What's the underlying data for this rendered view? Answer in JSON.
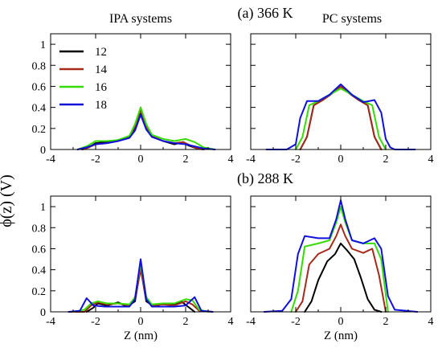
{
  "figure": {
    "ylabel": "ϕ(z)   (V)",
    "row_titles": [
      "(a) 366 K",
      "(b) 288 K"
    ],
    "col_titles": [
      "IPA systems",
      "PC systems"
    ]
  },
  "legend": {
    "entries": [
      {
        "label": "12",
        "color": "#000000"
      },
      {
        "label": "14",
        "color": "#a52a1a"
      },
      {
        "label": "16",
        "color": "#33dd00"
      },
      {
        "label": "18",
        "color": "#1010dd"
      }
    ]
  },
  "chart_data": [
    {
      "type": "line",
      "panel": "a-IPA",
      "xlabel": "",
      "ylabel": "",
      "xlim": [
        -4,
        4
      ],
      "ylim": [
        0,
        1.1
      ],
      "xticks": [
        "-4",
        "-2",
        "0",
        "2",
        "4"
      ],
      "yticks": [
        "0",
        "0.2",
        "0.4",
        "0.6",
        "0.8",
        "1"
      ],
      "series": [
        {
          "name": "12",
          "color": "#000000",
          "x": [
            -2.6,
            -2.3,
            -2.0,
            -1.5,
            -1.0,
            -0.5,
            -0.25,
            0,
            0.25,
            0.5,
            1.0,
            1.5,
            1.9,
            2.1,
            2.5,
            2.8
          ],
          "y": [
            0,
            0.02,
            0.06,
            0.07,
            0.09,
            0.12,
            0.2,
            0.34,
            0.2,
            0.12,
            0.08,
            0.05,
            0.07,
            0.04,
            0.01,
            0
          ]
        },
        {
          "name": "14",
          "color": "#a52a1a",
          "x": [
            -2.6,
            -2.3,
            -2.0,
            -1.5,
            -1.0,
            -0.5,
            -0.25,
            0,
            0.25,
            0.5,
            1.0,
            1.5,
            1.9,
            2.1,
            2.5,
            2.8
          ],
          "y": [
            0,
            0.02,
            0.05,
            0.06,
            0.08,
            0.12,
            0.22,
            0.38,
            0.22,
            0.13,
            0.08,
            0.06,
            0.07,
            0.05,
            0.01,
            0
          ]
        },
        {
          "name": "16",
          "color": "#33dd00",
          "x": [
            -2.8,
            -2.4,
            -2.0,
            -1.5,
            -1.0,
            -0.5,
            -0.25,
            0,
            0.25,
            0.5,
            1.0,
            1.5,
            2.0,
            2.4,
            2.8,
            3.3
          ],
          "y": [
            0,
            0.03,
            0.08,
            0.08,
            0.09,
            0.13,
            0.24,
            0.4,
            0.24,
            0.14,
            0.1,
            0.08,
            0.1,
            0.07,
            0.02,
            0
          ]
        },
        {
          "name": "18",
          "color": "#1010dd",
          "x": [
            -2.8,
            -2.4,
            -2.0,
            -1.5,
            -1.0,
            -0.5,
            -0.25,
            0,
            0.25,
            0.5,
            1.0,
            1.5,
            2.0,
            2.4,
            2.8,
            3.3
          ],
          "y": [
            0,
            0.02,
            0.05,
            0.06,
            0.08,
            0.11,
            0.18,
            0.33,
            0.19,
            0.12,
            0.08,
            0.06,
            0.05,
            0.03,
            0.01,
            0
          ]
        }
      ]
    },
    {
      "type": "line",
      "panel": "a-PC",
      "xlabel": "",
      "ylabel": "",
      "xlim": [
        -4,
        4
      ],
      "ylim": [
        0,
        1.1
      ],
      "xticks": [
        "-4",
        "-2",
        "0",
        "2",
        "4"
      ],
      "yticks": [
        "0",
        "0.2",
        "0.4",
        "0.6",
        "0.8",
        "1"
      ],
      "series": [
        {
          "name": "12",
          "color": "#000000",
          "x": [
            -1.8,
            -1.5,
            -1.2,
            -0.8,
            -0.4,
            0,
            0.4,
            0.8,
            1.2,
            1.5,
            1.8
          ],
          "y": [
            0,
            0.12,
            0.42,
            0.47,
            0.53,
            0.6,
            0.53,
            0.47,
            0.42,
            0.12,
            0
          ]
        },
        {
          "name": "14",
          "color": "#a52a1a",
          "x": [
            -1.8,
            -1.5,
            -1.2,
            -0.8,
            -0.4,
            0,
            0.4,
            0.8,
            1.2,
            1.5,
            1.8
          ],
          "y": [
            0,
            0.12,
            0.42,
            0.47,
            0.53,
            0.6,
            0.53,
            0.47,
            0.42,
            0.12,
            0
          ]
        },
        {
          "name": "16",
          "color": "#33dd00",
          "x": [
            -2.0,
            -1.7,
            -1.4,
            -1.0,
            -0.5,
            0,
            0.5,
            1.0,
            1.4,
            1.7,
            2.0
          ],
          "y": [
            0,
            0.12,
            0.42,
            0.46,
            0.52,
            0.58,
            0.52,
            0.46,
            0.42,
            0.12,
            0
          ]
        },
        {
          "name": "18",
          "color": "#1010dd",
          "x": [
            -3.3,
            -2.4,
            -2.0,
            -1.8,
            -1.5,
            -1.0,
            -0.5,
            0,
            0.5,
            1.0,
            1.5,
            1.8,
            2.0,
            2.2,
            2.4,
            3.3
          ],
          "y": [
            0,
            0,
            0.05,
            0.3,
            0.46,
            0.46,
            0.52,
            0.62,
            0.52,
            0.45,
            0.47,
            0.35,
            0.1,
            0.02,
            0,
            0
          ]
        }
      ]
    },
    {
      "type": "line",
      "panel": "b-IPA",
      "xlabel": "Z (nm)",
      "ylabel": "",
      "xlim": [
        -4,
        4
      ],
      "ylim": [
        0,
        1.1
      ],
      "xticks": [
        "-4",
        "-2",
        "0",
        "2",
        "4"
      ],
      "yticks": [
        "0",
        "0.2",
        "0.4",
        "0.6",
        "0.8",
        "1"
      ],
      "series": [
        {
          "name": "12",
          "color": "#000000",
          "x": [
            -2.4,
            -2.1,
            -1.9,
            -1.5,
            -1.0,
            -0.6,
            -0.25,
            0,
            0.25,
            0.6,
            1.0,
            1.5,
            1.8,
            2.1,
            2.4
          ],
          "y": [
            0,
            0.04,
            0.08,
            0.06,
            0.09,
            0.05,
            0.1,
            0.42,
            0.1,
            0.05,
            0.08,
            0.07,
            0.1,
            0.05,
            0
          ]
        },
        {
          "name": "14",
          "color": "#a52a1a",
          "x": [
            -3.2,
            -2.5,
            -2.2,
            -1.9,
            -1.5,
            -1.0,
            -0.5,
            -0.25,
            0,
            0.25,
            0.5,
            1.0,
            1.5,
            2.0,
            2.3,
            2.6,
            3.2
          ],
          "y": [
            0,
            0,
            0.06,
            0.09,
            0.07,
            0.08,
            0.06,
            0.12,
            0.4,
            0.12,
            0.06,
            0.07,
            0.06,
            0.1,
            0.07,
            0.01,
            0
          ]
        },
        {
          "name": "16",
          "color": "#33dd00",
          "x": [
            -3.0,
            -2.5,
            -2.2,
            -1.9,
            -1.5,
            -1.0,
            -0.5,
            -0.25,
            0,
            0.25,
            0.5,
            1.0,
            1.5,
            2.0,
            2.3,
            2.6,
            3.0
          ],
          "y": [
            0,
            0.02,
            0.08,
            0.1,
            0.08,
            0.08,
            0.07,
            0.14,
            0.46,
            0.14,
            0.07,
            0.08,
            0.08,
            0.12,
            0.11,
            0.02,
            0
          ]
        },
        {
          "name": "18",
          "color": "#1010dd",
          "x": [
            -3.2,
            -2.7,
            -2.4,
            -2.1,
            -1.6,
            -1.0,
            -0.5,
            -0.25,
            0,
            0.25,
            0.5,
            1.0,
            1.5,
            2.0,
            2.4,
            2.7,
            3.2
          ],
          "y": [
            0,
            0.01,
            0.13,
            0.06,
            0.05,
            0.05,
            0.05,
            0.12,
            0.5,
            0.12,
            0.05,
            0.05,
            0.05,
            0.06,
            0.14,
            0.01,
            0
          ]
        }
      ]
    },
    {
      "type": "line",
      "panel": "b-PC",
      "xlabel": "Z (nm)",
      "ylabel": "",
      "xlim": [
        -4,
        4
      ],
      "ylim": [
        0,
        1.1
      ],
      "xticks": [
        "-4",
        "-2",
        "0",
        "2",
        "4"
      ],
      "yticks": [
        "0",
        "0.2",
        "0.4",
        "0.6",
        "0.8",
        "1"
      ],
      "series": [
        {
          "name": "12",
          "color": "#000000",
          "x": [
            -1.6,
            -1.3,
            -1.0,
            -0.6,
            -0.25,
            0,
            0.3,
            0.6,
            0.9,
            1.2,
            1.5,
            1.8
          ],
          "y": [
            0,
            0.1,
            0.3,
            0.48,
            0.55,
            0.65,
            0.58,
            0.5,
            0.32,
            0.12,
            0.02,
            0
          ]
        },
        {
          "name": "14",
          "color": "#a52a1a",
          "x": [
            -2.0,
            -1.7,
            -1.4,
            -1.0,
            -0.5,
            -0.2,
            0,
            0.2,
            0.5,
            1.0,
            1.4,
            1.7,
            2.0
          ],
          "y": [
            0,
            0.1,
            0.45,
            0.55,
            0.6,
            0.72,
            0.83,
            0.72,
            0.6,
            0.56,
            0.6,
            0.35,
            0
          ]
        },
        {
          "name": "16",
          "color": "#33dd00",
          "x": [
            -2.2,
            -1.9,
            -1.6,
            -1.0,
            -0.5,
            -0.2,
            0,
            0.2,
            0.5,
            1.0,
            1.5,
            1.8,
            2.1
          ],
          "y": [
            0,
            0.2,
            0.62,
            0.65,
            0.68,
            0.85,
            1.0,
            0.85,
            0.68,
            0.65,
            0.65,
            0.5,
            0
          ]
        },
        {
          "name": "18",
          "color": "#1010dd",
          "x": [
            -3.4,
            -2.6,
            -2.2,
            -1.9,
            -1.6,
            -1.0,
            -0.5,
            -0.2,
            0,
            0.2,
            0.5,
            1.0,
            1.5,
            1.8,
            2.1,
            2.4,
            3.4
          ],
          "y": [
            0,
            0.01,
            0.12,
            0.55,
            0.72,
            0.7,
            0.7,
            0.88,
            1.06,
            0.88,
            0.68,
            0.65,
            0.7,
            0.6,
            0.15,
            0.02,
            0
          ]
        }
      ]
    }
  ]
}
